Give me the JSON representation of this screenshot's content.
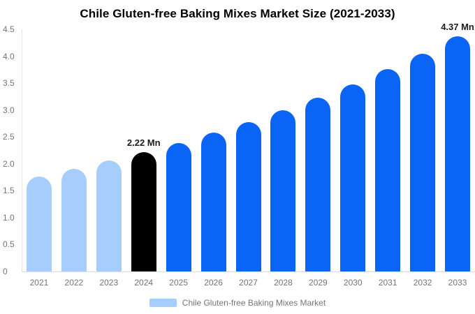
{
  "title": "Chile Gluten-free Baking Mixes Market Size (2021-2033)",
  "colors": {
    "historical_bar": "#a6cdfb",
    "base_year_bar": "#000000",
    "forecast_bar": "#0a64f5",
    "axis_line": "#e4e4e4",
    "tick_text": "#757575",
    "value_label_text": "#1c1c1c",
    "title_text": "#000000"
  },
  "legend": {
    "label": "Chile Gluten-free Baking Mixes Market",
    "swatch_color": "#a6cdfb"
  },
  "chart_data": {
    "type": "bar",
    "title": "Chile Gluten-free Baking Mixes Market Size (2021-2033)",
    "categories": [
      "2021",
      "2022",
      "2023",
      "2024",
      "2025",
      "2026",
      "2027",
      "2028",
      "2029",
      "2030",
      "2031",
      "2032",
      "2033"
    ],
    "values": [
      1.77,
      1.91,
      2.06,
      2.22,
      2.39,
      2.58,
      2.78,
      3.0,
      3.23,
      3.48,
      3.76,
      4.05,
      4.37
    ],
    "unit": "Mn",
    "bar_colors": [
      "#a6cdfb",
      "#a6cdfb",
      "#a6cdfb",
      "#000000",
      "#0a64f5",
      "#0a64f5",
      "#0a64f5",
      "#0a64f5",
      "#0a64f5",
      "#0a64f5",
      "#0a64f5",
      "#0a64f5",
      "#0a64f5"
    ],
    "xlabel": "",
    "ylabel": "",
    "ylim": [
      0,
      4.5
    ],
    "ytick_labels": [
      "0",
      "0.5",
      "1.0",
      "1.5",
      "2.0",
      "2.5",
      "3.0",
      "3.5",
      "4.0",
      "4.5"
    ],
    "grid": false,
    "legend_position": "bottom",
    "annotations": [
      {
        "category": "2024",
        "text": "2.22 Mn"
      },
      {
        "category": "2033",
        "text": "4.37 Mn"
      }
    ]
  }
}
